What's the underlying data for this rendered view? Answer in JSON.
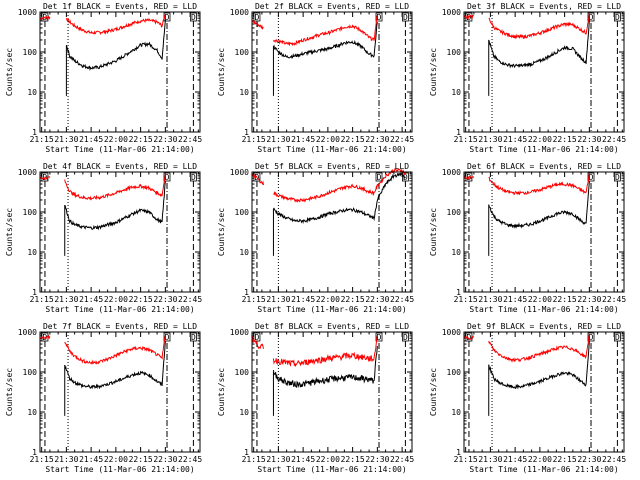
{
  "chart_data": {
    "type": "line",
    "yscale": "log",
    "ylim": [
      1,
      1000
    ],
    "xlim": [
      "21:14:00",
      "22:51:00"
    ],
    "xticks": [
      "21:15",
      "21:30",
      "21:45",
      "22:00",
      "22:15",
      "22:30",
      "22:45"
    ],
    "yticks": [
      "1",
      "10",
      "100",
      "1000"
    ],
    "xlabel": "Start Time (11-Mar-06 21:14:00)",
    "ylabel": "Counts/sec",
    "marker_label": "D",
    "colors": {
      "events": "#000000",
      "lld": "#ff0000"
    },
    "panels": [
      {
        "title": "Det 1f BLACK = Events, RED = LLD",
        "dash_lines": [
          "21:17",
          "22:31",
          "22:47"
        ],
        "dot_lines": [
          "21:31"
        ],
        "gap": [
          "21:21",
          "21:30"
        ],
        "series": [
          {
            "x": [
              "21:14",
              "21:17",
              "21:20"
            ],
            "lld": [
              700,
              720,
              740
            ],
            "events": []
          },
          {
            "x": [
              "21:30",
              "21:32",
              "21:35",
              "21:40",
              "21:45",
              "21:50",
              "21:55",
              "22:00",
              "22:05",
              "22:10",
              "22:15",
              "22:20",
              "22:25",
              "22:28",
              "22:30"
            ],
            "lld": [
              700,
              560,
              450,
              350,
              300,
              310,
              330,
              370,
              440,
              520,
              600,
              620,
              560,
              450,
              900
            ],
            "events": [
              150,
              80,
              60,
              45,
              40,
              42,
              50,
              60,
              80,
              110,
              150,
              160,
              110,
              70,
              600
            ]
          }
        ]
      },
      {
        "title": "Det 2f BLACK = Events, RED = LLD",
        "dash_lines": [
          "21:17",
          "22:31",
          "22:47"
        ],
        "dot_lines": [
          "21:30"
        ],
        "gap": [
          "21:22",
          "21:27"
        ],
        "series": [
          {
            "x": [
              "21:14",
              "21:17",
              "21:21"
            ],
            "lld": [
              600,
              500,
              400
            ],
            "events": []
          },
          {
            "x": [
              "21:27",
              "21:30",
              "21:35",
              "21:40",
              "21:45",
              "21:50",
              "21:55",
              "22:00",
              "22:05",
              "22:10",
              "22:15",
              "22:20",
              "22:25",
              "22:28",
              "22:30"
            ],
            "lld": [
              200,
              190,
              160,
              165,
              200,
              230,
              270,
              300,
              350,
              420,
              450,
              350,
              230,
              200,
              900
            ],
            "events": [
              140,
              100,
              75,
              80,
              90,
              100,
              110,
              120,
              140,
              170,
              180,
              140,
              90,
              80,
              600
            ]
          }
        ]
      },
      {
        "title": "Det 3f BLACK = Events, RED = LLD",
        "dash_lines": [
          "21:17",
          "22:31",
          "22:47"
        ],
        "dot_lines": [
          "21:31"
        ],
        "gap": [
          "21:21",
          "21:29"
        ],
        "series": [
          {
            "x": [
              "21:14",
              "21:17",
              "21:20"
            ],
            "lld": [
              750,
              760,
              760
            ],
            "events": []
          },
          {
            "x": [
              "21:29",
              "21:32",
              "21:35",
              "21:40",
              "21:45",
              "21:50",
              "21:55",
              "22:00",
              "22:05",
              "22:10",
              "22:15",
              "22:20",
              "22:25",
              "22:28",
              "22:30"
            ],
            "lld": [
              700,
              420,
              340,
              280,
              240,
              240,
              260,
              300,
              360,
              430,
              500,
              480,
              360,
              300,
              900
            ],
            "events": [
              200,
              80,
              60,
              48,
              45,
              46,
              50,
              60,
              75,
              100,
              130,
              120,
              70,
              55,
              600
            ]
          }
        ]
      },
      {
        "title": "Det 4f BLACK = Events, RED = LLD",
        "dash_lines": [
          "21:17",
          "22:31",
          "22:47"
        ],
        "dot_lines": [
          "21:31"
        ],
        "gap": [
          "21:21",
          "21:29"
        ],
        "series": [
          {
            "x": [
              "21:14",
              "21:17",
              "21:20"
            ],
            "lld": [
              700,
              720,
              740
            ],
            "events": []
          },
          {
            "x": [
              "21:29",
              "21:32",
              "21:35",
              "21:40",
              "21:45",
              "21:50",
              "21:55",
              "22:00",
              "22:05",
              "22:10",
              "22:15",
              "22:20",
              "22:25",
              "22:28",
              "22:30"
            ],
            "lld": [
              600,
              330,
              270,
              230,
              220,
              230,
              260,
              300,
              360,
              420,
              440,
              400,
              300,
              260,
              900
            ],
            "events": [
              150,
              60,
              48,
              42,
              40,
              42,
              48,
              55,
              70,
              90,
              110,
              100,
              65,
              55,
              600
            ]
          }
        ]
      },
      {
        "title": "Det 5f BLACK = Events, RED = LLD",
        "dash_lines": [
          "21:17",
          "22:31",
          "22:47"
        ],
        "dot_lines": [
          "21:30"
        ],
        "gap": [
          "21:22",
          "21:27"
        ],
        "series": [
          {
            "x": [
              "21:14",
              "21:17",
              "21:21"
            ],
            "lld": [
              900,
              700,
              500
            ],
            "events": []
          },
          {
            "x": [
              "21:27",
              "21:30",
              "21:35",
              "21:40",
              "21:45",
              "21:50",
              "21:55",
              "22:00",
              "22:05",
              "22:10",
              "22:15",
              "22:20",
              "22:25",
              "22:28",
              "22:30",
              "22:35",
              "22:40",
              "22:45",
              "22:47"
            ],
            "lld": [
              300,
              260,
              220,
              200,
              200,
              220,
              250,
              300,
              350,
              420,
              450,
              400,
              320,
              300,
              450,
              800,
              1100,
              1100,
              900
            ],
            "events": [
              120,
              90,
              70,
              60,
              60,
              65,
              75,
              90,
              100,
              110,
              115,
              100,
              80,
              70,
              200,
              500,
              800,
              900,
              700
            ]
          }
        ]
      },
      {
        "title": "Det 6f BLACK = Events, RED = LLD",
        "dash_lines": [
          "21:17",
          "22:31",
          "22:47"
        ],
        "dot_lines": [
          "21:31"
        ],
        "gap": [
          "21:21",
          "21:29"
        ],
        "series": [
          {
            "x": [
              "21:14",
              "21:17",
              "21:20"
            ],
            "lld": [
              700,
              720,
              740
            ],
            "events": []
          },
          {
            "x": [
              "21:29",
              "21:32",
              "21:35",
              "21:40",
              "21:45",
              "21:50",
              "21:55",
              "22:00",
              "22:05",
              "22:10",
              "22:15",
              "22:20",
              "22:25",
              "22:28",
              "22:30"
            ],
            "lld": [
              700,
              500,
              400,
              320,
              300,
              300,
              320,
              360,
              420,
              480,
              500,
              460,
              350,
              300,
              900
            ],
            "events": [
              150,
              80,
              60,
              48,
              45,
              46,
              50,
              60,
              72,
              90,
              100,
              90,
              60,
              50,
              600
            ]
          }
        ]
      },
      {
        "title": "Det 7f BLACK = Events, RED = LLD",
        "dash_lines": [
          "21:17",
          "22:31",
          "22:47"
        ],
        "dot_lines": [
          "21:31"
        ],
        "gap": [
          "21:21",
          "21:29"
        ],
        "series": [
          {
            "x": [
              "21:14",
              "21:17",
              "21:20"
            ],
            "lld": [
              700,
              720,
              740
            ],
            "events": []
          },
          {
            "x": [
              "21:29",
              "21:32",
              "21:35",
              "21:40",
              "21:45",
              "21:50",
              "21:55",
              "22:00",
              "22:05",
              "22:10",
              "22:15",
              "22:20",
              "22:25",
              "22:28",
              "22:30"
            ],
            "lld": [
              600,
              330,
              250,
              190,
              170,
              180,
              210,
              260,
              320,
              380,
              400,
              360,
              270,
              220,
              900
            ],
            "events": [
              150,
              70,
              55,
              45,
              42,
              44,
              50,
              58,
              70,
              85,
              95,
              85,
              58,
              48,
              600
            ]
          }
        ]
      },
      {
        "title": "Det 8f BLACK = Events, RED = LLD",
        "dash_lines": [
          "21:17",
          "22:31",
          "22:47"
        ],
        "dot_lines": [
          "21:30"
        ],
        "gap": [
          "21:22",
          "21:27"
        ],
        "series": [
          {
            "x": [
              "21:14",
              "21:17",
              "21:21"
            ],
            "lld": [
              700,
              500,
              400
            ],
            "events": []
          },
          {
            "x": [
              "21:27",
              "21:30",
              "21:35",
              "21:40",
              "21:45",
              "21:50",
              "21:55",
              "22:00",
              "22:05",
              "22:10",
              "22:15",
              "22:20",
              "22:25",
              "22:28",
              "22:30"
            ],
            "lld": [
              200,
              190,
              170,
              160,
              170,
              190,
              200,
              220,
              230,
              250,
              260,
              240,
              220,
              210,
              900
            ],
            "events": [
              100,
              70,
              55,
              50,
              50,
              55,
              60,
              65,
              70,
              72,
              74,
              70,
              65,
              60,
              500
            ]
          }
        ]
      },
      {
        "title": "Det 9f BLACK = Events, RED = LLD",
        "dash_lines": [
          "21:17",
          "22:31",
          "22:47"
        ],
        "dot_lines": [
          "21:31"
        ],
        "gap": [
          "21:21",
          "21:29"
        ],
        "series": [
          {
            "x": [
              "21:14",
              "21:17",
              "21:20"
            ],
            "lld": [
              700,
              720,
              740
            ],
            "events": []
          },
          {
            "x": [
              "21:29",
              "21:32",
              "21:35",
              "21:40",
              "21:45",
              "21:50",
              "21:55",
              "22:00",
              "22:05",
              "22:10",
              "22:15",
              "22:20",
              "22:25",
              "22:28",
              "22:30"
            ],
            "lld": [
              600,
              360,
              280,
              220,
              200,
              210,
              240,
              280,
              330,
              390,
              420,
              380,
              280,
              240,
              900
            ],
            "events": [
              150,
              70,
              55,
              45,
              42,
              44,
              50,
              58,
              70,
              85,
              95,
              85,
              58,
              48,
              600
            ]
          }
        ]
      }
    ]
  }
}
